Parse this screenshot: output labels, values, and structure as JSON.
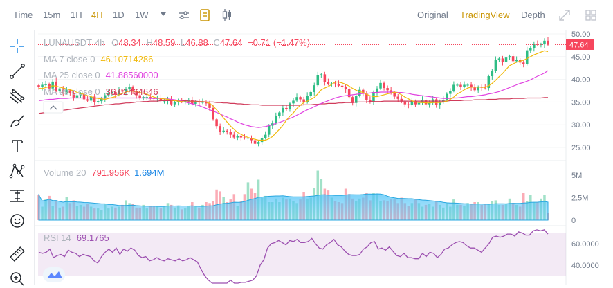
{
  "toolbar": {
    "time_label": "Time",
    "intervals": [
      "15m",
      "1H",
      "4H",
      "1D",
      "1W"
    ],
    "active_interval": "4H",
    "views": [
      "Original",
      "TradingView",
      "Depth"
    ],
    "active_view": "TradingView"
  },
  "ohlc": {
    "symbol": "LUNAUSDT",
    "interval": "4h",
    "open_label": "O",
    "open": "48.34",
    "high_label": "H",
    "high": "48.59",
    "low_label": "L",
    "low": "46.88",
    "close_label": "C",
    "close": "47.64",
    "change": "−0.71",
    "change_pct": "(−1.47%)"
  },
  "indicators": {
    "ma7": {
      "label": "MA 7 close 0",
      "value": "46.10714286",
      "color": "#f0b90b"
    },
    "ma25": {
      "label": "MA 25 close 0",
      "value": "41.88560000",
      "color": "#e040e0"
    },
    "ma99": {
      "label": "MA 99 close 0",
      "value": "36.02464646",
      "color": "#d03a5a"
    }
  },
  "volume": {
    "label": "Volume 20",
    "value1": "791.956K",
    "value2": "1.694M"
  },
  "rsi": {
    "label": "RSI 14",
    "value": "69.1765",
    "color": "#9c4fb0"
  },
  "price_tag": "47.64",
  "colors": {
    "up": "#2ebd85",
    "down": "#f6465d",
    "accent": "#c99400"
  },
  "chart_data": {
    "type": "candlestick",
    "title": "LUNAUSDT 4h",
    "y_ticks": [
      "50.00",
      "45.00",
      "40.00",
      "35.00",
      "30.00",
      "25.00"
    ],
    "ylim": [
      23,
      51
    ],
    "volume_ticks": [
      "5M",
      "2.5M",
      "0"
    ],
    "volume_max": 6,
    "rsi_ticks": [
      "60.0000",
      "40.0000"
    ],
    "rsi_range": [
      25,
      80
    ],
    "rsi_band": [
      30,
      70
    ],
    "close": [
      38.3,
      38.8,
      38.9,
      38.0,
      39.5,
      37.5,
      38.0,
      37.0,
      37.6,
      37.0,
      36.0,
      36.5,
      36.8,
      35.6,
      35.3,
      36.2,
      35.0,
      35.2,
      35.8,
      36.5,
      37.0,
      37.2,
      36.6,
      37.6,
      37.3,
      37.8,
      38.3,
      37.3,
      36.5,
      35.9,
      36.1,
      36.1,
      35.9,
      35.7,
      35.9,
      35.2,
      35.3,
      35.6,
      34.5,
      35.0,
      35.2,
      35.1,
      35.2,
      35.4,
      34.6,
      35.1,
      34.9,
      35.0,
      34.7,
      33.7,
      31.2,
      29.7,
      28.5,
      28.7,
      28.4,
      27.8,
      27.2,
      27.5,
      27.2,
      27.1,
      27.1,
      26.6,
      25.8,
      26.2,
      27.1,
      27.8,
      29.8,
      30.3,
      31.9,
      32.7,
      33.7,
      33.4,
      34.7,
      35.3,
      36.1,
      35.6,
      35.0,
      36.4,
      37.2,
      38.7,
      40.9,
      41.1,
      39.4,
      39.0,
      39.1,
      39.0,
      38.6,
      38.4,
      37.8,
      36.1,
      34.8,
      36.4,
      37.7,
      36.8,
      35.5,
      35.0,
      37.2,
      38.0,
      39.2,
      38.1,
      37.6,
      37.0,
      36.2,
      35.7,
      35.1,
      34.5,
      34.4,
      35.2,
      34.5,
      34.8,
      35.5,
      34.5,
      34.8,
      35.6,
      34.3,
      35.0,
      35.5,
      36.8,
      37.5,
      38.8,
      38.8,
      38.4,
      38.8,
      38.8,
      38.2,
      37.6,
      38.3,
      38.2,
      38.1,
      40.7,
      41.8,
      44.3,
      44.6,
      43.8,
      44.8,
      45.1,
      44.0,
      44.3,
      43.7,
      43.4,
      46.4,
      46.9,
      47.8,
      47.6,
      47.7,
      48.5,
      47.6
    ],
    "volume_mil": [
      2.8,
      1.5,
      2.3,
      2.7,
      1.6,
      2.2,
      1.4,
      1.5,
      2.6,
      1.9,
      2.2,
      1.6,
      1.7,
      1.5,
      1.8,
      1.5,
      1.3,
      1.3,
      1.1,
      1.8,
      1.3,
      1.5,
      1.4,
      1.5,
      1.7,
      2.2,
      1.9,
      1.8,
      1.4,
      1.4,
      1.7,
      1.3,
      1.6,
      1.5,
      1.5,
      1.3,
      1.6,
      1.9,
      1.7,
      1.4,
      1.6,
      1.2,
      1.3,
      1.6,
      2.0,
      1.6,
      1.4,
      1.7,
      2.0,
      1.9,
      2.1,
      3.4,
      3.2,
      2.6,
      2.0,
      2.3,
      2.9,
      1.6,
      2.1,
      2.9,
      4.2,
      3.5,
      3.0,
      4.5,
      2.5,
      2.7,
      2.0,
      2.0,
      2.4,
      2.0,
      2.5,
      2.3,
      2.4,
      2.1,
      1.9,
      2.3,
      3.1,
      2.4,
      2.5,
      3.6,
      5.5,
      4.6,
      3.5,
      3.3,
      2.5,
      2.1,
      2.0,
      1.9,
      3.5,
      2.9,
      2.4,
      2.1,
      2.4,
      2.5,
      3.0,
      2.2,
      3.0,
      2.9,
      2.1,
      2.2,
      2.1,
      2.3,
      2.3,
      1.9,
      2.5,
      1.9,
      1.6,
      1.9,
      2.3,
      1.9,
      1.5,
      1.7,
      1.8,
      1.5,
      2.1,
      1.7,
      1.4,
      1.9,
      1.5,
      2.3,
      1.7,
      1.7,
      1.6,
      1.9,
      1.8,
      2.0,
      2.0,
      1.7,
      1.8,
      1.8,
      2.1,
      2.2,
      1.7,
      1.7,
      1.8,
      2.4,
      1.9,
      1.7,
      1.5,
      3.0,
      2.1,
      2.8,
      2.0,
      2.0,
      2.4,
      2.8,
      0.8
    ],
    "ma7": [
      38.0,
      38.0,
      38.2,
      38.4,
      38.6,
      38.5,
      38.3,
      38.1,
      37.9,
      37.7,
      37.5,
      37.1,
      36.9,
      36.7,
      36.4,
      36.2,
      35.9,
      35.8,
      35.7,
      35.6,
      35.8,
      36.0,
      36.2,
      36.6,
      36.9,
      37.2,
      37.4,
      37.4,
      37.3,
      37.1,
      36.9,
      36.7,
      36.4,
      36.1,
      35.9,
      35.8,
      35.7,
      35.6,
      35.4,
      35.3,
      35.2,
      35.1,
      35.0,
      35.0,
      35.0,
      35.0,
      35.0,
      35.0,
      35.0,
      34.7,
      34.1,
      33.3,
      32.4,
      31.5,
      30.6,
      29.7,
      29.0,
      28.3,
      27.9,
      27.5,
      27.2,
      27.0,
      26.8,
      26.6,
      26.6,
      26.6,
      26.9,
      27.4,
      28.2,
      29.0,
      29.9,
      31.0,
      31.9,
      32.6,
      33.6,
      34.3,
      34.9,
      35.2,
      35.6,
      36.0,
      36.8,
      37.7,
      38.1,
      38.4,
      38.9,
      39.4,
      39.4,
      39.2,
      38.9,
      38.5,
      38.0,
      37.6,
      37.3,
      37.1,
      36.7,
      36.4,
      36.2,
      36.2,
      36.4,
      36.6,
      36.8,
      37.0,
      37.2,
      37.0,
      36.6,
      36.1,
      35.7,
      35.3,
      35.0,
      34.9,
      34.9,
      34.8,
      34.8,
      34.9,
      34.9,
      34.9,
      35.0,
      35.2,
      35.6,
      36.1,
      36.8,
      37.2,
      37.7,
      38.1,
      38.3,
      38.3,
      38.3,
      38.3,
      38.2,
      38.6,
      39.1,
      39.8,
      40.6,
      41.3,
      42.2,
      43.0,
      43.4,
      43.8,
      44.0,
      44.2,
      44.6,
      45.0,
      45.4,
      45.7,
      46.0,
      46.3,
      46.1
    ],
    "ma25": [
      35.3,
      35.4,
      35.5,
      35.6,
      35.6,
      35.7,
      35.8,
      35.8,
      35.8,
      35.9,
      35.9,
      35.9,
      35.9,
      35.9,
      35.9,
      35.9,
      35.9,
      35.9,
      35.9,
      35.9,
      35.9,
      35.9,
      35.9,
      35.9,
      35.9,
      35.9,
      35.9,
      35.9,
      35.9,
      35.9,
      35.9,
      35.9,
      35.8,
      35.8,
      35.8,
      35.8,
      35.7,
      35.7,
      35.6,
      35.5,
      35.4,
      35.2,
      35.0,
      34.8,
      34.6,
      34.4,
      34.2,
      33.9,
      33.6,
      33.3,
      33.0,
      32.7,
      32.4,
      32.0,
      31.7,
      31.3,
      31.0,
      30.6,
      30.3,
      30.0,
      29.8,
      29.6,
      29.5,
      29.4,
      29.5,
      29.6,
      29.8,
      30.0,
      30.3,
      30.5,
      30.8,
      31.1,
      31.4,
      31.7,
      32.1,
      32.5,
      32.9,
      33.3,
      33.6,
      34.0,
      34.3,
      34.7,
      35.0,
      35.3,
      35.6,
      35.9,
      36.1,
      36.3,
      36.4,
      36.5,
      36.6,
      36.7,
      36.8,
      36.9,
      36.9,
      37.0,
      37.1,
      37.1,
      37.2,
      37.2,
      37.2,
      37.2,
      37.2,
      37.1,
      37.1,
      37.0,
      36.9,
      36.7,
      36.6,
      36.5,
      36.4,
      36.3,
      36.2,
      36.1,
      36.0,
      35.9,
      35.8,
      35.8,
      35.8,
      35.9,
      35.9,
      36.0,
      36.1,
      36.2,
      36.2,
      36.3,
      36.4,
      36.5,
      36.6,
      36.8,
      36.9,
      37.1,
      37.3,
      37.6,
      37.9,
      38.2,
      38.5,
      38.8,
      39.1,
      39.3,
      39.6,
      39.9,
      40.3,
      40.7,
      41.0,
      41.4,
      41.9
    ],
    "ma99": [
      32.5,
      32.6,
      32.7,
      32.8,
      32.9,
      33.0,
      33.1,
      33.2,
      33.3,
      33.4,
      33.5,
      33.6,
      33.7,
      33.8,
      33.9,
      34.0,
      34.1,
      34.2,
      34.3,
      34.4,
      34.4,
      34.5,
      34.6,
      34.6,
      34.7,
      34.8,
      34.8,
      34.9,
      35.0,
      35.0,
      35.1,
      35.1,
      35.2,
      35.2,
      35.2,
      35.3,
      35.3,
      35.3,
      35.3,
      35.3,
      35.3,
      35.3,
      35.3,
      35.2,
      35.2,
      35.2,
      35.1,
      35.1,
      35.0,
      35.0,
      35.0,
      34.9,
      34.9,
      34.8,
      34.8,
      34.7,
      34.7,
      34.6,
      34.6,
      34.5,
      34.5,
      34.4,
      34.4,
      34.4,
      34.3,
      34.3,
      34.3,
      34.3,
      34.3,
      34.3,
      34.3,
      34.3,
      34.3,
      34.3,
      34.3,
      34.3,
      34.4,
      34.4,
      34.4,
      34.5,
      34.5,
      34.6,
      34.6,
      34.7,
      34.7,
      34.7,
      34.8,
      34.8,
      34.9,
      34.9,
      34.9,
      35.0,
      35.0,
      35.0,
      35.0,
      35.1,
      35.1,
      35.1,
      35.1,
      35.2,
      35.2,
      35.2,
      35.2,
      35.2,
      35.2,
      35.2,
      35.2,
      35.2,
      35.2,
      35.2,
      35.2,
      35.2,
      35.2,
      35.2,
      35.2,
      35.2,
      35.2,
      35.2,
      35.3,
      35.3,
      35.3,
      35.3,
      35.4,
      35.4,
      35.4,
      35.5,
      35.5,
      35.5,
      35.5,
      35.6,
      35.6,
      35.6,
      35.7,
      35.7,
      35.7,
      35.7,
      35.8,
      35.8,
      35.8,
      35.8,
      35.9,
      35.9,
      35.9,
      35.9,
      35.9,
      36.0,
      36.0
    ],
    "rsi": [
      52,
      51,
      52,
      55,
      47,
      49,
      50,
      48,
      54,
      52,
      51,
      48,
      50,
      49,
      48,
      44,
      42,
      48,
      52,
      55,
      52,
      56,
      50,
      55,
      53,
      56,
      54,
      49,
      47,
      48,
      44,
      45,
      47,
      45,
      44,
      46,
      45,
      44,
      46,
      44,
      45,
      47,
      45,
      43,
      36,
      30,
      26,
      23,
      22,
      23,
      22,
      21,
      26,
      23,
      20,
      24,
      24,
      25,
      26,
      30,
      40,
      45,
      56,
      60,
      61,
      63,
      61,
      59,
      63,
      62,
      64,
      61,
      61,
      62,
      65,
      60,
      56,
      55,
      59,
      61,
      64,
      59,
      57,
      53,
      50,
      49,
      49,
      50,
      55,
      57,
      61,
      62,
      55,
      56,
      54,
      57,
      53,
      49,
      48,
      51,
      47,
      47,
      46,
      46,
      51,
      48,
      52,
      51,
      47,
      50,
      55,
      56,
      59,
      61,
      62,
      61,
      58,
      56,
      56,
      54,
      52,
      56,
      60,
      66,
      67,
      66,
      67,
      69,
      69,
      67,
      71,
      70,
      68,
      68,
      72,
      73,
      72,
      73,
      69
    ]
  }
}
